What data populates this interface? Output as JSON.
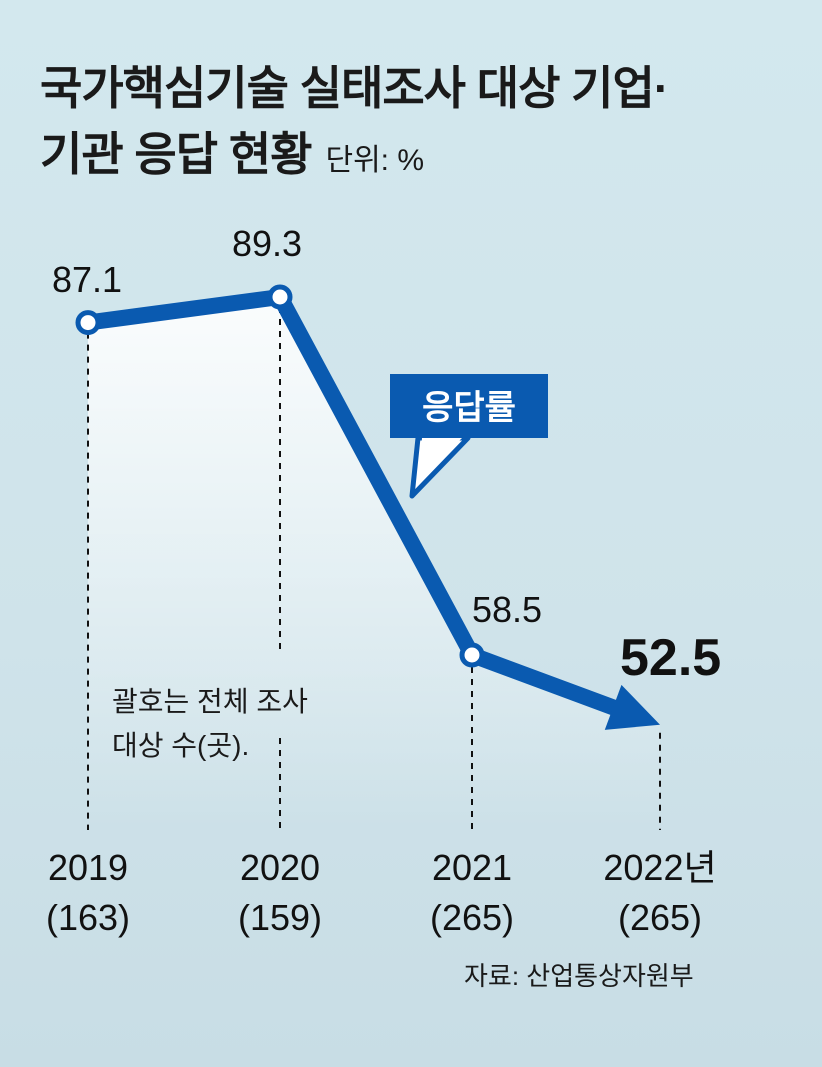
{
  "title_line1": "국가핵심기술 실태조사 대상 기업·",
  "title_line2": "기관 응답 현황",
  "unit": "단위: %",
  "note_line1": "괄호는 전체 조사",
  "note_line2": "대상 수(곳).",
  "source": "자료: 산업통상자원부",
  "colors": {
    "line": "#0a5ab0",
    "background": "#d3e8ee"
  },
  "chart_data": {
    "type": "line",
    "x": [
      "2019",
      "2020",
      "2021",
      "2022년"
    ],
    "counts": [
      "(163)",
      "(159)",
      "(265)",
      "(265)"
    ],
    "series": [
      {
        "name": "응답률",
        "values": [
          87.1,
          89.3,
          58.5,
          52.5
        ],
        "labels": [
          "87.1",
          "89.3",
          "58.5",
          "52.5"
        ]
      }
    ]
  }
}
